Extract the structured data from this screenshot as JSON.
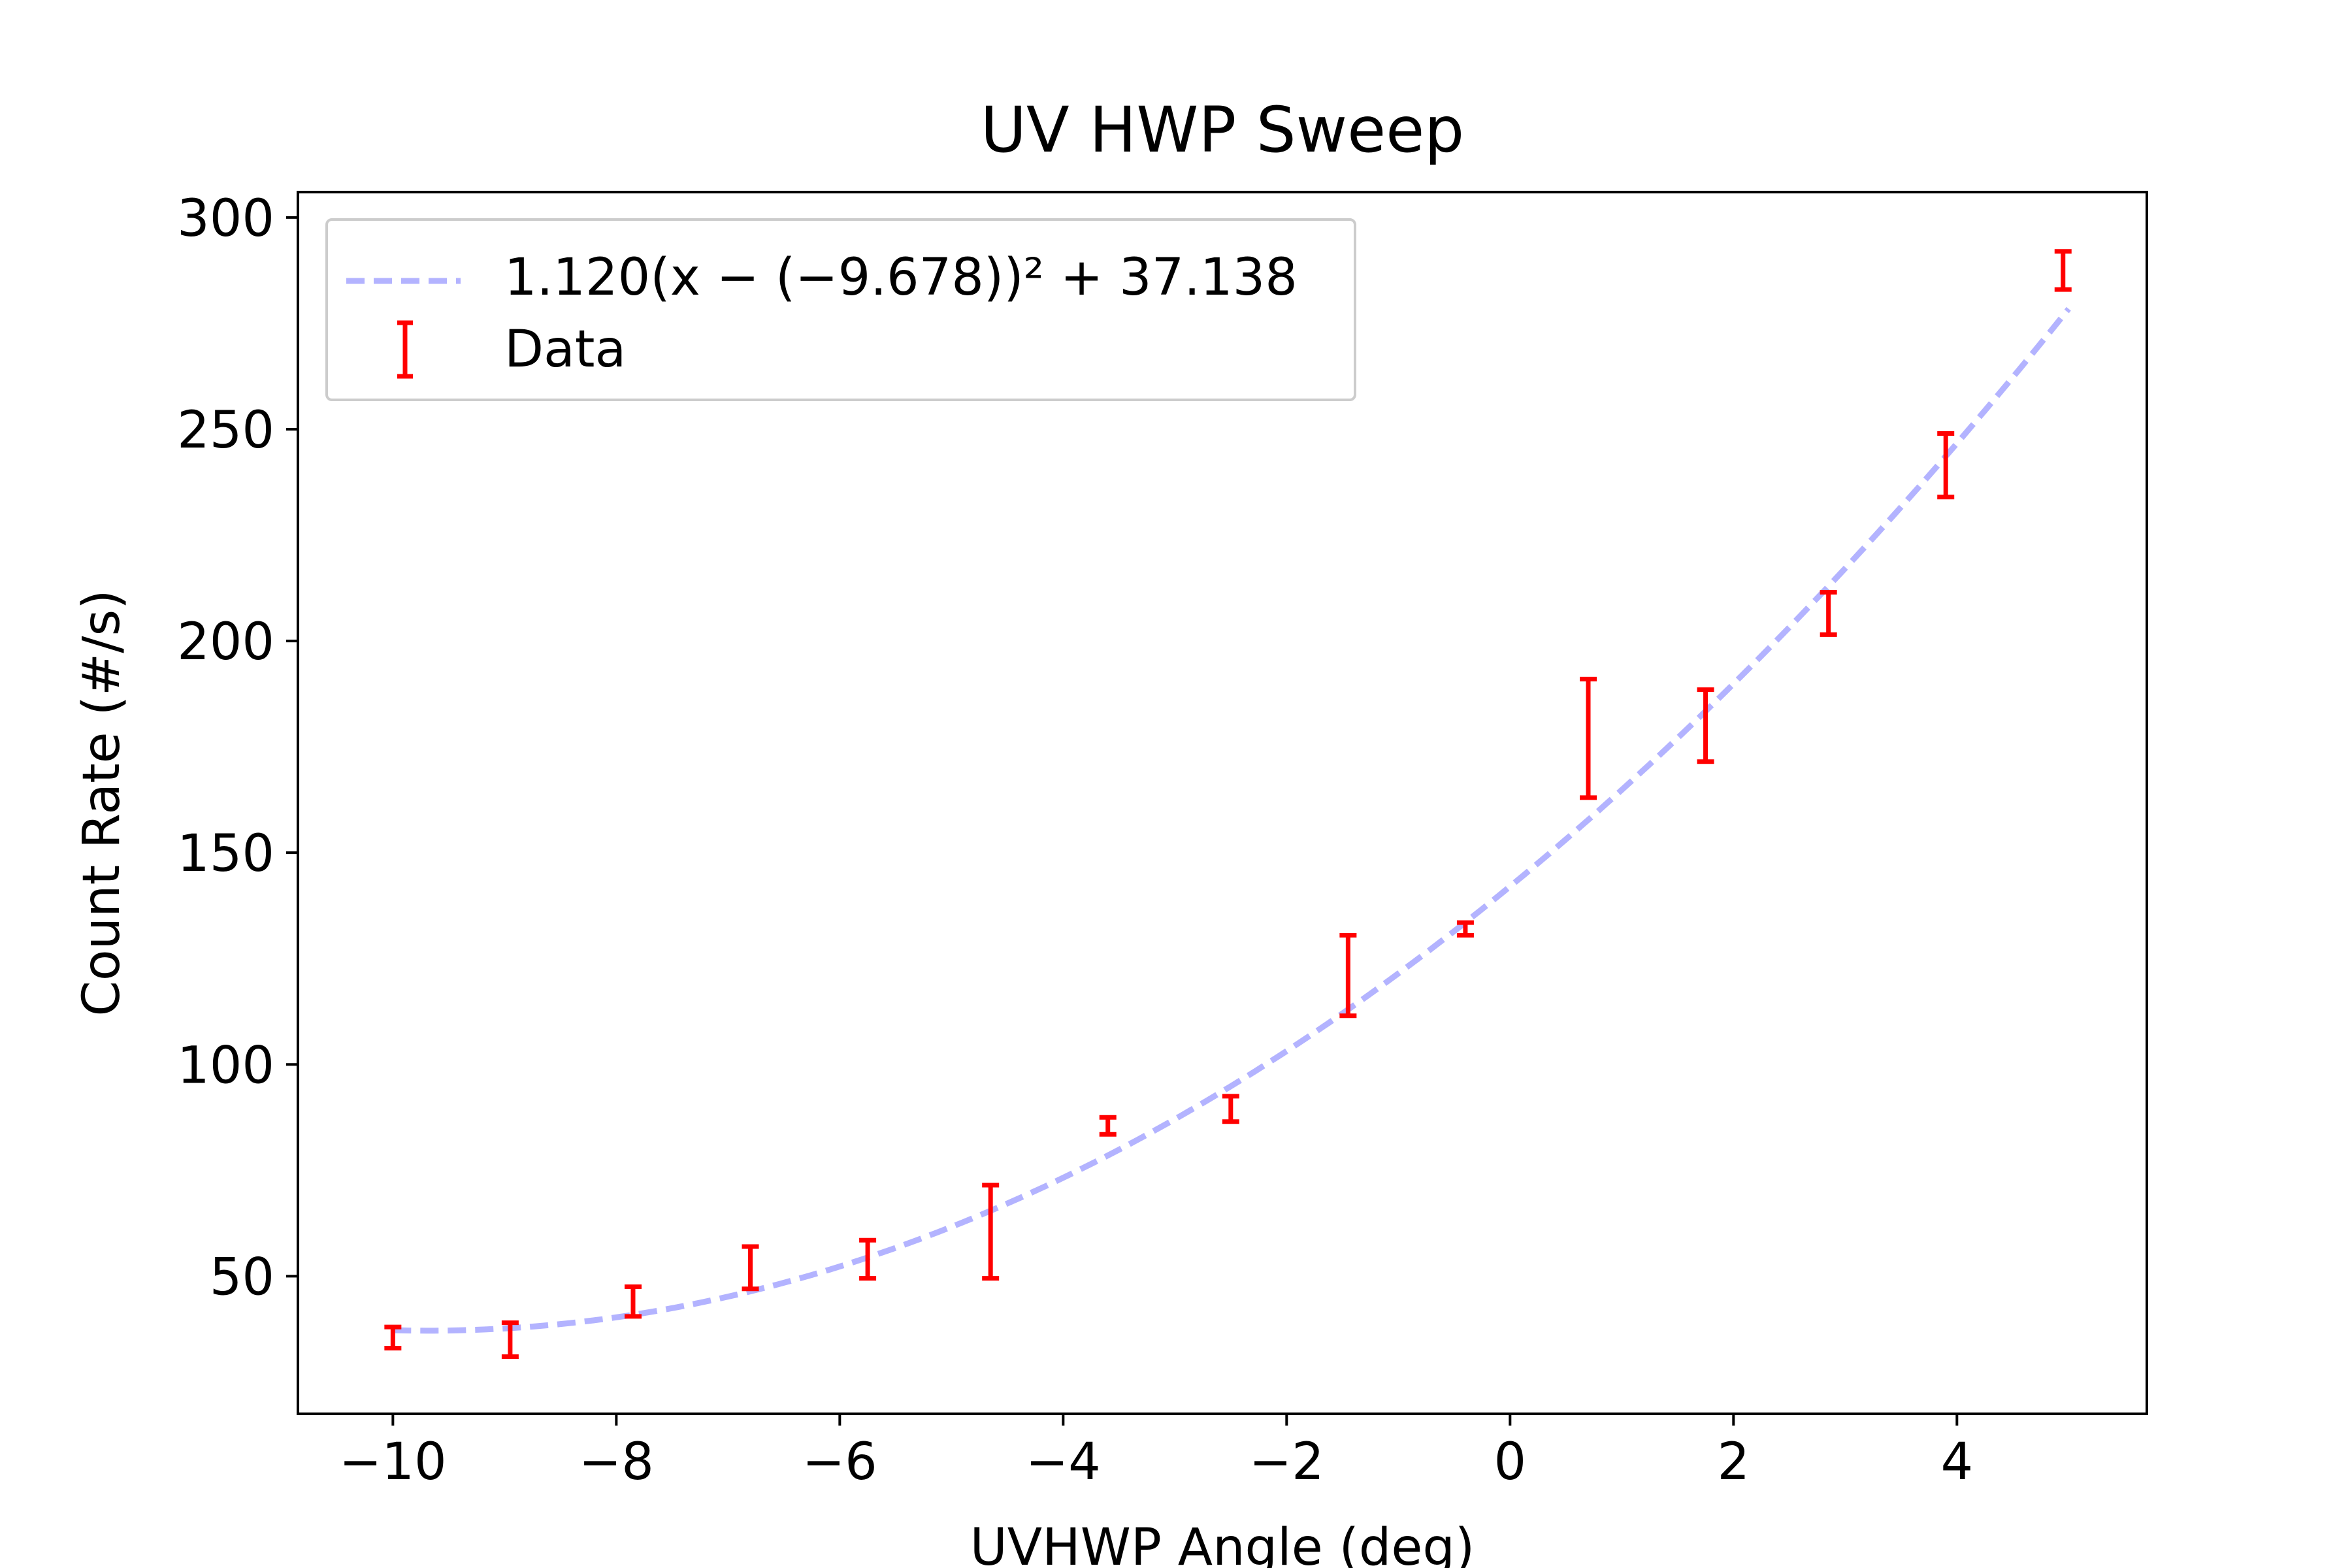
{
  "chart_data": {
    "type": "scatter",
    "title": "UV HWP Sweep",
    "xlabel": "UVHWP Angle (deg)",
    "ylabel": "Count Rate (#/s)",
    "xlim": [
      -10.85,
      5.7
    ],
    "ylim": [
      17.5,
      306
    ],
    "xticks": [
      -10,
      -8,
      -6,
      -4,
      -2,
      0,
      2,
      4
    ],
    "xtick_labels": [
      "−10",
      "−8",
      "−6",
      "−4",
      "−2",
      "0",
      "2",
      "4"
    ],
    "yticks": [
      50,
      100,
      150,
      200,
      250,
      300
    ],
    "ytick_labels": [
      "50",
      "100",
      "150",
      "200",
      "250",
      "300"
    ],
    "legend_position": "top-left",
    "grid": false,
    "fit": {
      "name": "1.120(x − (−9.678))² + 37.138",
      "a": 1.12,
      "x0": -9.678,
      "c": 37.138,
      "x_range": [
        -10.0,
        5.0
      ],
      "color": "#b3b3ff",
      "style": "dashed"
    },
    "series": [
      {
        "name": "Data",
        "color": "#ff0000",
        "points": [
          {
            "x": -10.0,
            "y": 35.5,
            "err": 2.5
          },
          {
            "x": -8.95,
            "y": 35.0,
            "err": 4.0
          },
          {
            "x": -7.85,
            "y": 44.0,
            "err": 3.5
          },
          {
            "x": -6.8,
            "y": 52.0,
            "err": 5.0
          },
          {
            "x": -5.75,
            "y": 54.0,
            "err": 4.5
          },
          {
            "x": -4.65,
            "y": 60.5,
            "err": 11.0
          },
          {
            "x": -3.6,
            "y": 85.5,
            "err": 2.0
          },
          {
            "x": -2.5,
            "y": 89.5,
            "err": 3.0
          },
          {
            "x": -1.45,
            "y": 121.0,
            "err": 9.5
          },
          {
            "x": -0.4,
            "y": 132.0,
            "err": 1.5
          },
          {
            "x": 0.7,
            "y": 177.0,
            "err": 14.0
          },
          {
            "x": 1.75,
            "y": 180.0,
            "err": 8.5
          },
          {
            "x": 2.85,
            "y": 206.5,
            "err": 5.0
          },
          {
            "x": 3.9,
            "y": 241.5,
            "err": 7.5
          },
          {
            "x": 4.95,
            "y": 287.5,
            "err": 4.5
          }
        ]
      }
    ]
  }
}
